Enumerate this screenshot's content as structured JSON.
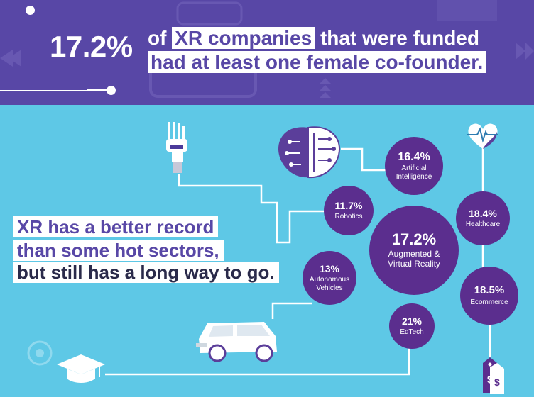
{
  "header": {
    "big_percent": "17.2%",
    "line1_pre": "of",
    "line1_highlight": "XR companies",
    "line1_post": "that were funded",
    "line2": "had at least one female co-founder."
  },
  "tagline": {
    "line1": "XR has a better record",
    "line2": "than some hot sectors,",
    "line3": "but still has a long way to go."
  },
  "bubbles": {
    "ai": {
      "pct": "16.4%",
      "label1": "Artificial",
      "label2": "Intelligence"
    },
    "robotics": {
      "pct": "11.7%",
      "label1": "Robotics"
    },
    "healthcare": {
      "pct": "18.4%",
      "label1": "Healthcare"
    },
    "ar_vr": {
      "pct": "17.2%",
      "label1": "Augmented &",
      "label2": "Virtual Reality"
    },
    "autonomous": {
      "pct": "13%",
      "label1": "Autonomous",
      "label2": "Vehicles"
    },
    "ecommerce": {
      "pct": "18.5%",
      "label1": "Ecommerce"
    },
    "edtech": {
      "pct": "21%",
      "label1": "EdTech"
    }
  },
  "colors": {
    "banner": "#5847a6",
    "background": "#5ec8e6",
    "bubble": "#5b2e8e",
    "white": "#ffffff"
  },
  "icons": [
    "robot-hand-icon",
    "brain-icon",
    "heart-monitor-icon",
    "car-icon",
    "graduation-cap-icon",
    "price-tag-icon"
  ]
}
